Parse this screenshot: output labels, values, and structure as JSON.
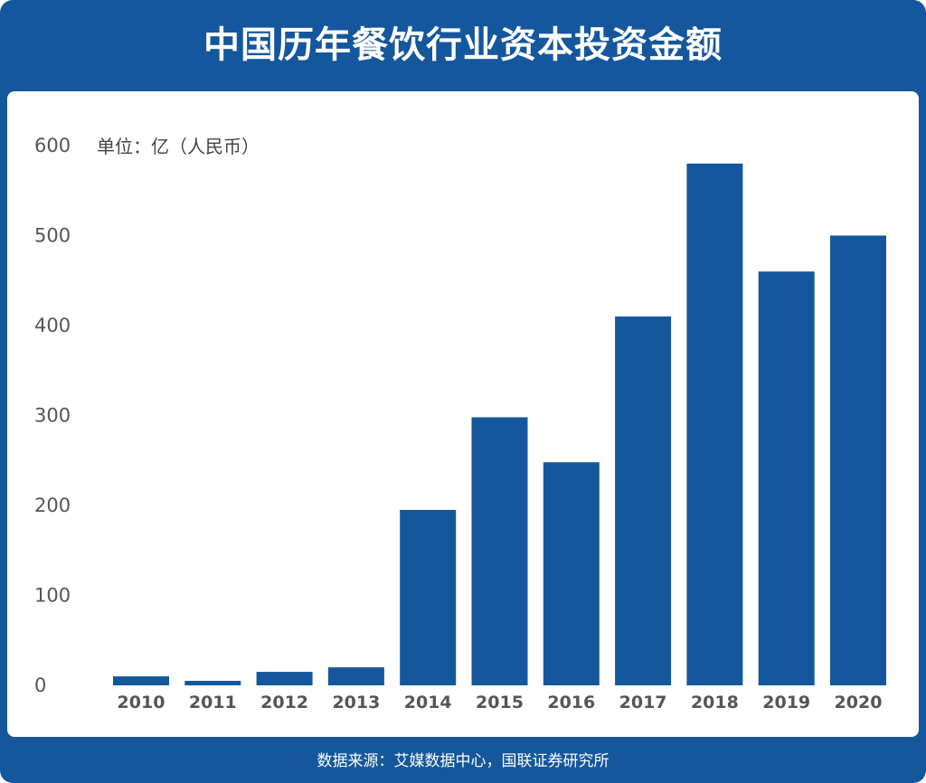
{
  "title": "中国历年餐饮行业资本投资金额",
  "source": "数据来源：艾媒数据中心，国联证券研究所",
  "colors": {
    "frame": "#15579c",
    "bar": "#15579c",
    "panel": "#ffffff"
  },
  "chart_data": {
    "type": "bar",
    "title": "中国历年餐饮行业资本投资金额",
    "ylabel": "单位：亿（人民币）",
    "xlabel": "",
    "categories": [
      "2010",
      "2011",
      "2012",
      "2013",
      "2014",
      "2015",
      "2016",
      "2017",
      "2018",
      "2019",
      "2020"
    ],
    "values": [
      10,
      5,
      15,
      20,
      195,
      298,
      248,
      410,
      580,
      460,
      500
    ],
    "ylim": [
      0,
      600
    ],
    "yticks": [
      "0",
      "100",
      "200",
      "300",
      "400",
      "500",
      "600"
    ],
    "grid": false,
    "legend": "none"
  }
}
